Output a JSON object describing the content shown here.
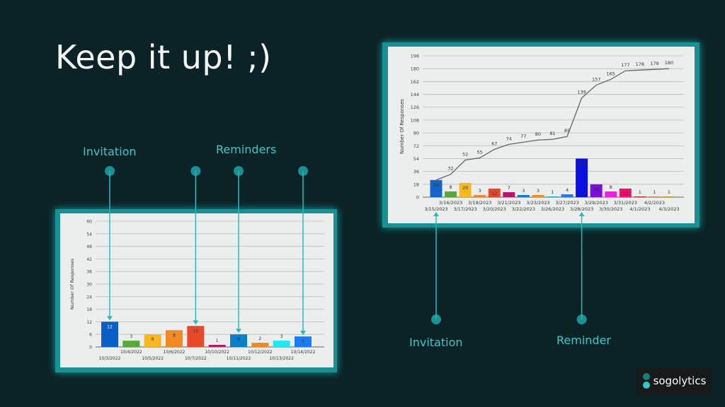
{
  "slide": {
    "title": "Keep it up! ;)",
    "left_annotations": {
      "invitation": "Invitation",
      "reminders": "Reminders"
    },
    "right_annotations": {
      "invitation": "Invitation",
      "reminder": "Reminder"
    },
    "logo": "sogolytics",
    "colors": {
      "background": "#0b2326",
      "accent": "#3cc6c8",
      "frame": "#1a8f94"
    }
  },
  "chart_data": [
    {
      "type": "bar",
      "title": "",
      "ylabel": "Number Of Responses",
      "xlabel": "",
      "ylim": [
        0,
        60
      ],
      "yticks": [
        0,
        6,
        12,
        18,
        24,
        30,
        36,
        42,
        48,
        54,
        60
      ],
      "grid": true,
      "categories": [
        "10/3/2022",
        "10/4/2022",
        "10/5/2022",
        "10/6/2022",
        "10/7/2022",
        "10/10/2022",
        "10/11/2022",
        "10/12/2022",
        "10/13/2022",
        "10/14/2022"
      ],
      "values": [
        12,
        3,
        6,
        8,
        10,
        1,
        6,
        2,
        3,
        5
      ],
      "colors": [
        "#0a5fc4",
        "#5aa83c",
        "#f5b820",
        "#f08a24",
        "#e8482a",
        "#b0186a",
        "#0b7fc7",
        "#f08a24",
        "#1ee8f0",
        "#1a7cf0"
      ],
      "annotated": {
        "Invitation": [
          "10/3/2022"
        ],
        "Reminders": [
          "10/7/2022",
          "10/11/2022",
          "10/14/2022"
        ]
      }
    },
    {
      "type": "bar+line",
      "title": "",
      "ylabel": "Number Of Responses",
      "xlabel": "",
      "ylim": [
        0,
        198
      ],
      "yticks": [
        0,
        18,
        36,
        54,
        72,
        90,
        108,
        126,
        144,
        162,
        180,
        198
      ],
      "grid": true,
      "categories": [
        "3/15/2023",
        "3/16/2023",
        "3/17/2023",
        "3/19/2023",
        "3/20/2023",
        "3/21/2023",
        "3/22/2023",
        "3/23/2023",
        "3/26/2023",
        "3/27/2023",
        "3/28/2023",
        "3/29/2023",
        "3/30/2023",
        "3/31/2023",
        "4/1/2023",
        "4/2/2023",
        "4/3/2023"
      ],
      "values": [
        24,
        8,
        20,
        3,
        12,
        7,
        3,
        3,
        1,
        4,
        54,
        18,
        8,
        12,
        1,
        1,
        1
      ],
      "cumulative": [
        24,
        32,
        52,
        55,
        67,
        74,
        77,
        80,
        81,
        85,
        139,
        157,
        165,
        177,
        178,
        179,
        180
      ],
      "colors": [
        "#1565c8",
        "#5aa83c",
        "#f5b820",
        "#f08a24",
        "#e8482a",
        "#b0186a",
        "#0b7fc7",
        "#f08a24",
        "#1fb0c0",
        "#1a7cf0",
        "#0a10e0",
        "#7a10d8",
        "#f020e0",
        "#f0106a",
        "#c02a2a",
        "#c09060",
        "#b0a030"
      ],
      "annotated": {
        "Invitation": [
          "3/15/2023"
        ],
        "Reminder": [
          "3/28/2023"
        ]
      }
    }
  ]
}
